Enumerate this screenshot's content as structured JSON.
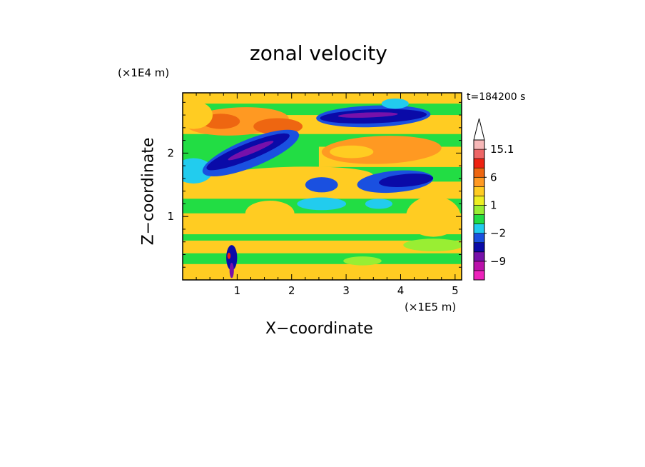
{
  "chart_data": {
    "type": "heatmap",
    "title": "zonal velocity",
    "xlabel": "X−coordinate",
    "ylabel": "Z−coordinate",
    "x_multiplier": "(×1E5 m)",
    "y_multiplier": "(×1E4 m)",
    "time_label": "t=184200 s",
    "xlim": [
      0,
      5.12
    ],
    "ylim": [
      0,
      2.95
    ],
    "xticks": [
      "1",
      "2",
      "3",
      "4",
      "5"
    ],
    "yticks": [
      "1",
      "2"
    ],
    "colorbar_labels": [
      "15.1",
      "6",
      "1",
      "−2",
      "−9"
    ],
    "colorbar_levels": [
      -15,
      -12,
      -9,
      -6,
      -3,
      -2,
      -1,
      0,
      1,
      2,
      3,
      6,
      9,
      12,
      15.1
    ],
    "colorbar_colors": [
      "#ee22bb",
      "#bb11aa",
      "#7711aa",
      "#0a0aa8",
      "#1a50e0",
      "#22ccee",
      "#22dd44",
      "#99ee33",
      "#eeee22",
      "#ffcc22",
      "#ff9922",
      "#ee6611",
      "#ee2211",
      "#ee6666",
      "#f7b8b8"
    ],
    "background": "#22dd44",
    "bands": [
      {
        "x0": 0,
        "x1": 5.12,
        "y0": 0.0,
        "y1": 0.25,
        "value": 2
      },
      {
        "x0": 0,
        "x1": 5.12,
        "y0": 0.42,
        "y1": 0.62,
        "value": 2
      },
      {
        "x0": 0,
        "x1": 5.12,
        "y0": 0.72,
        "y1": 1.05,
        "value": 2
      },
      {
        "x0": 0,
        "x1": 5.12,
        "y0": 1.28,
        "y1": 1.55,
        "value": 2
      },
      {
        "x0": 0,
        "x1": 2.5,
        "y0": 1.48,
        "y1": 1.72,
        "value": 2
      },
      {
        "x0": 2.5,
        "x1": 5.12,
        "y0": 1.78,
        "y1": 2.1,
        "value": 2
      },
      {
        "x0": 0,
        "x1": 5.12,
        "y0": 2.3,
        "y1": 2.6,
        "value": 2
      },
      {
        "x0": 0,
        "x1": 5.12,
        "y0": 2.78,
        "y1": 2.95,
        "value": 2
      }
    ],
    "blobs": [
      {
        "cx": 1.0,
        "cy": 2.5,
        "rx": 0.95,
        "ry": 0.22,
        "rot": -3,
        "value": 4
      },
      {
        "cx": 0.7,
        "cy": 2.5,
        "rx": 0.35,
        "ry": 0.12,
        "rot": 0,
        "value": 7
      },
      {
        "cx": 1.75,
        "cy": 2.42,
        "rx": 0.45,
        "ry": 0.13,
        "rot": 0,
        "value": 7
      },
      {
        "cx": 3.65,
        "cy": 2.05,
        "rx": 1.1,
        "ry": 0.22,
        "rot": -2,
        "value": 4
      },
      {
        "cx": 3.1,
        "cy": 2.02,
        "rx": 0.4,
        "ry": 0.1,
        "rot": 0,
        "value": 2
      },
      {
        "cx": 1.9,
        "cy": 1.6,
        "rx": 1.6,
        "ry": 0.18,
        "rot": -2,
        "value": 2
      },
      {
        "cx": 4.6,
        "cy": 1.0,
        "rx": 0.5,
        "ry": 0.32,
        "rot": 0,
        "value": 2
      },
      {
        "cx": 1.6,
        "cy": 1.05,
        "rx": 0.45,
        "ry": 0.2,
        "rot": 0,
        "value": 2
      },
      {
        "cx": 0.2,
        "cy": 1.72,
        "rx": 0.35,
        "ry": 0.2,
        "rot": 0,
        "value": -1.5
      },
      {
        "cx": 0.2,
        "cy": 2.6,
        "rx": 0.35,
        "ry": 0.22,
        "rot": 0,
        "value": 2
      },
      {
        "cx": 1.25,
        "cy": 2.0,
        "rx": 0.95,
        "ry": 0.22,
        "rot": -22,
        "value": -2.5
      },
      {
        "cx": 1.2,
        "cy": 2.02,
        "rx": 0.82,
        "ry": 0.13,
        "rot": -22,
        "value": -4
      },
      {
        "cx": 1.25,
        "cy": 2.04,
        "rx": 0.45,
        "ry": 0.05,
        "rot": -22,
        "value": -7
      },
      {
        "cx": 3.5,
        "cy": 2.58,
        "rx": 1.05,
        "ry": 0.17,
        "rot": -2,
        "value": -2.5
      },
      {
        "cx": 3.5,
        "cy": 2.58,
        "rx": 0.98,
        "ry": 0.11,
        "rot": -2,
        "value": -4
      },
      {
        "cx": 3.4,
        "cy": 2.6,
        "rx": 0.55,
        "ry": 0.04,
        "rot": -2,
        "value": -7
      },
      {
        "cx": 3.9,
        "cy": 1.55,
        "rx": 0.7,
        "ry": 0.17,
        "rot": -5,
        "value": -2.5
      },
      {
        "cx": 4.1,
        "cy": 1.57,
        "rx": 0.5,
        "ry": 0.1,
        "rot": -5,
        "value": -4
      },
      {
        "cx": 2.55,
        "cy": 1.5,
        "rx": 0.3,
        "ry": 0.12,
        "rot": 0,
        "value": -2.5
      },
      {
        "cx": 2.55,
        "cy": 1.2,
        "rx": 0.45,
        "ry": 0.1,
        "rot": 0,
        "value": -1.5
      },
      {
        "cx": 3.6,
        "cy": 1.2,
        "rx": 0.25,
        "ry": 0.08,
        "rot": 0,
        "value": -1.5
      },
      {
        "cx": 3.9,
        "cy": 2.78,
        "rx": 0.25,
        "ry": 0.08,
        "rot": 0,
        "value": -1.5
      },
      {
        "cx": 0.9,
        "cy": 0.35,
        "rx": 0.1,
        "ry": 0.2,
        "rot": 0,
        "value": -4
      },
      {
        "cx": 0.85,
        "cy": 0.38,
        "rx": 0.03,
        "ry": 0.05,
        "rot": 0,
        "value": 10
      },
      {
        "cx": 0.9,
        "cy": 0.15,
        "rx": 0.04,
        "ry": 0.12,
        "rot": 0,
        "value": -7
      },
      {
        "cx": 4.6,
        "cy": 0.55,
        "rx": 0.55,
        "ry": 0.1,
        "rot": 0,
        "value": 0.5
      },
      {
        "cx": 3.3,
        "cy": 0.3,
        "rx": 0.35,
        "ry": 0.07,
        "rot": 0,
        "value": 0.5
      }
    ]
  }
}
